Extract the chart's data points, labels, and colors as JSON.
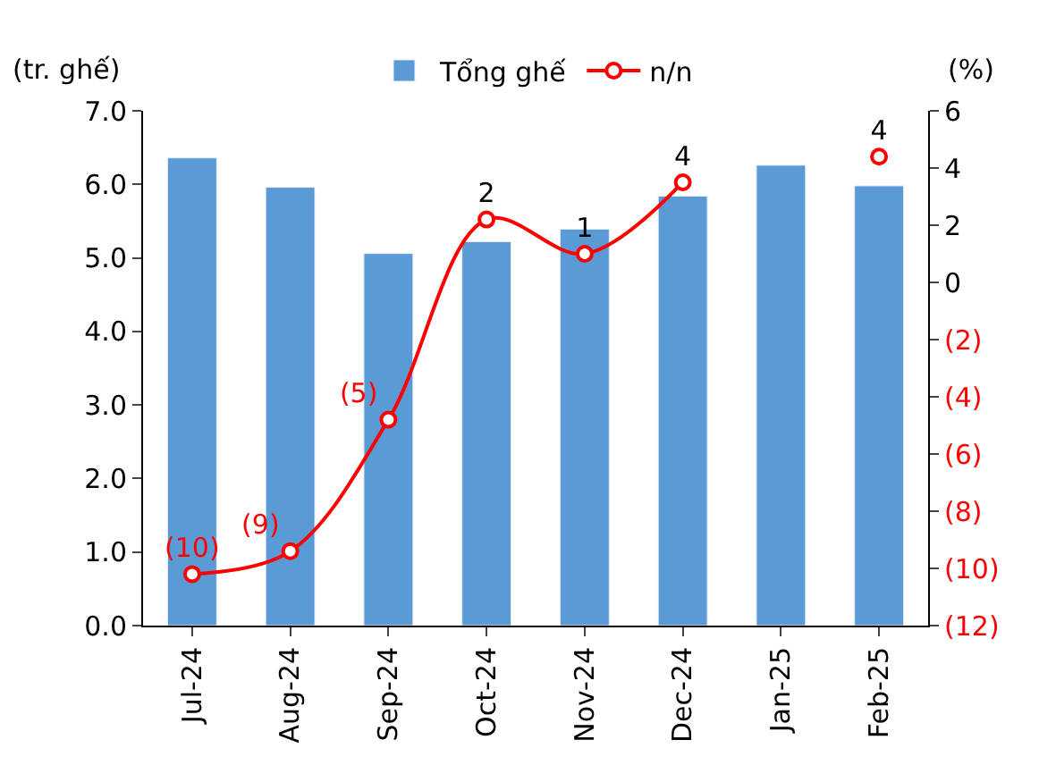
{
  "chart_data": {
    "type": "bar",
    "ylabel": "(tr. ghế)",
    "y2label": "(%)",
    "categories": [
      "Jul-24",
      "Aug-24",
      "Sep-24",
      "Oct-24",
      "Nov-24",
      "Dec-24",
      "Jan-25",
      "Feb-25"
    ],
    "series": [
      {
        "name": "Tổng ghế",
        "color": "#5b9bd5",
        "values": [
          6.36,
          5.96,
          5.06,
          5.22,
          5.39,
          5.84,
          6.26,
          5.98
        ]
      },
      {
        "name": "n/n",
        "type": "line",
        "axis": "y2",
        "color": "#ff0000",
        "marker": "circle",
        "values": [
          -10.2,
          -9.4,
          -4.8,
          2.2,
          1.0,
          3.5,
          null,
          4.4
        ],
        "value_labels": [
          "(10)",
          "(9)",
          "(5)",
          "2",
          "1",
          "4",
          null,
          "4"
        ]
      }
    ],
    "ylim": [
      0,
      7
    ],
    "yticks": [
      {
        "value": 0,
        "label": "0.0"
      },
      {
        "value": 1,
        "label": "1.0"
      },
      {
        "value": 2,
        "label": "2.0"
      },
      {
        "value": 3,
        "label": "3.0"
      },
      {
        "value": 4,
        "label": "4.0"
      },
      {
        "value": 5,
        "label": "5.0"
      },
      {
        "value": 6,
        "label": "6.0"
      },
      {
        "value": 7,
        "label": "7.0"
      }
    ],
    "y2lim": [
      -12,
      6
    ],
    "y2ticks": [
      {
        "value": -12,
        "label": "(12)"
      },
      {
        "value": -10,
        "label": "(10)"
      },
      {
        "value": -8,
        "label": "(8)"
      },
      {
        "value": -6,
        "label": "(6)"
      },
      {
        "value": -4,
        "label": "(4)"
      },
      {
        "value": -2,
        "label": "(2)"
      },
      0,
      2,
      4,
      6
    ],
    "legend": "top"
  }
}
